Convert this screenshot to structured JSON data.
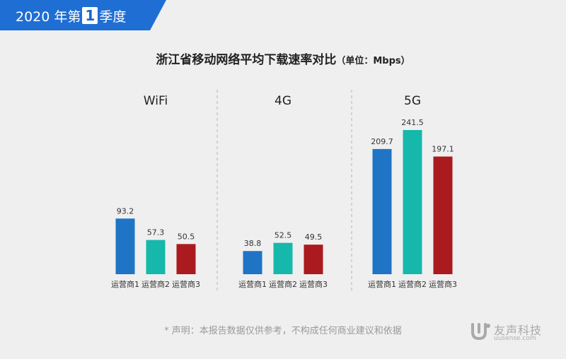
{
  "badge": {
    "year": "2020 年第",
    "num": "1",
    "suffix": "季度"
  },
  "title": {
    "main": "浙江省移动网络平均下载速率对比",
    "unit": "（单位：Mbps）"
  },
  "disclaimer": "* 声明：本报告数据仅供参考，不构成任何商业建议和依据",
  "logo": {
    "name": "友声科技",
    "url": "uusense.com"
  },
  "colors": {
    "badge": "#1f6ed4",
    "series": [
      "#1f74c6",
      "#16b8ab",
      "#ab1a1e"
    ]
  },
  "chart_data": {
    "type": "bar",
    "groups": [
      "WiFi",
      "4G",
      "5G"
    ],
    "series_names": [
      "运营商1",
      "运营商2",
      "运营商3"
    ],
    "values": [
      [
        93.2,
        57.3,
        50.5
      ],
      [
        38.8,
        52.5,
        49.5
      ],
      [
        209.7,
        241.5,
        197.1
      ]
    ],
    "value_labels": [
      [
        "93.2",
        "57.3",
        "50.5"
      ],
      [
        "38.8",
        "52.5",
        "49.5"
      ],
      [
        "209.7",
        "241.5",
        "197.1"
      ]
    ],
    "ylim": [
      0,
      241.5
    ],
    "grid": false,
    "group_separators": "dashed"
  }
}
